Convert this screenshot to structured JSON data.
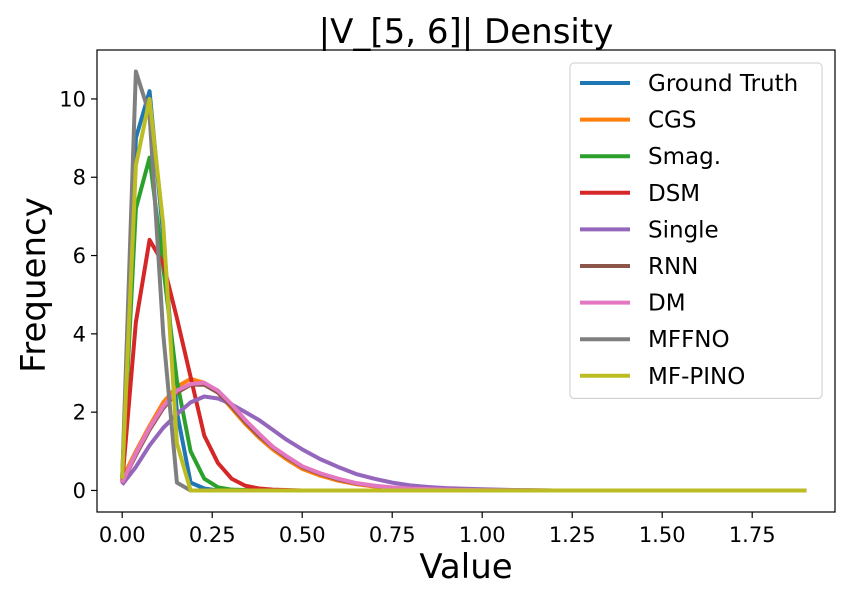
{
  "chart_data": {
    "type": "line",
    "title": "|V_[5, 6]| Density",
    "xlabel": "Value",
    "ylabel": "Frequency",
    "xlim": [
      -0.07,
      1.98
    ],
    "ylim": [
      -0.55,
      11.25
    ],
    "x_ticks": [
      0.0,
      0.25,
      0.5,
      0.75,
      1.0,
      1.25,
      1.5,
      1.75
    ],
    "x_tick_labels": [
      "0.00",
      "0.25",
      "0.50",
      "0.75",
      "1.00",
      "1.25",
      "1.50",
      "1.75"
    ],
    "y_ticks": [
      0,
      2,
      4,
      6,
      8,
      10
    ],
    "y_tick_labels": [
      "0",
      "2",
      "4",
      "6",
      "8",
      "10"
    ],
    "grid": false,
    "legend_position": "top-right",
    "series": [
      {
        "name": "Ground Truth",
        "color": "#1f77b4",
        "x": [
          0.0,
          0.038,
          0.076,
          0.114,
          0.152,
          0.19,
          0.228,
          0.266,
          0.4,
          0.6,
          1.0,
          1.5,
          1.9
        ],
        "y": [
          0.3,
          9.0,
          10.2,
          6.5,
          2.0,
          0.2,
          0.05,
          0.0,
          0.0,
          0.0,
          0.0,
          0.0,
          0.0
        ]
      },
      {
        "name": "CGS",
        "color": "#ff7f0e",
        "x": [
          0.0,
          0.038,
          0.076,
          0.114,
          0.152,
          0.19,
          0.228,
          0.266,
          0.304,
          0.342,
          0.38,
          0.418,
          0.456,
          0.5,
          0.55,
          0.6,
          0.65,
          0.7,
          0.75,
          0.8,
          0.9,
          1.0,
          1.2,
          1.5,
          1.9
        ],
        "y": [
          0.3,
          1.0,
          1.65,
          2.25,
          2.65,
          2.85,
          2.75,
          2.5,
          2.1,
          1.7,
          1.35,
          1.05,
          0.8,
          0.55,
          0.38,
          0.25,
          0.16,
          0.1,
          0.06,
          0.04,
          0.02,
          0.01,
          0.0,
          0.0,
          0.0
        ]
      },
      {
        "name": "Smag.",
        "color": "#2ca02c",
        "x": [
          0.0,
          0.038,
          0.076,
          0.114,
          0.152,
          0.19,
          0.228,
          0.266,
          0.304,
          0.4,
          0.6,
          1.0,
          1.5,
          1.9
        ],
        "y": [
          0.3,
          7.2,
          8.5,
          5.7,
          2.8,
          1.0,
          0.3,
          0.08,
          0.02,
          0.0,
          0.0,
          0.0,
          0.0,
          0.0
        ]
      },
      {
        "name": "DSM",
        "color": "#d62728",
        "x": [
          0.0,
          0.038,
          0.076,
          0.114,
          0.152,
          0.19,
          0.228,
          0.266,
          0.304,
          0.342,
          0.38,
          0.418,
          0.5,
          0.6,
          1.0,
          1.5,
          1.9
        ],
        "y": [
          0.2,
          4.3,
          6.4,
          5.8,
          4.4,
          2.9,
          1.4,
          0.7,
          0.3,
          0.12,
          0.05,
          0.02,
          0.0,
          0.0,
          0.0,
          0.0,
          0.0
        ]
      },
      {
        "name": "Single",
        "color": "#9467bd",
        "x": [
          0.0,
          0.038,
          0.076,
          0.114,
          0.152,
          0.19,
          0.228,
          0.266,
          0.304,
          0.342,
          0.38,
          0.418,
          0.456,
          0.5,
          0.55,
          0.6,
          0.65,
          0.7,
          0.75,
          0.8,
          0.85,
          0.9,
          1.0,
          1.1,
          1.2,
          1.5,
          1.9
        ],
        "y": [
          0.15,
          0.6,
          1.15,
          1.6,
          1.95,
          2.25,
          2.4,
          2.35,
          2.2,
          2.0,
          1.8,
          1.55,
          1.3,
          1.05,
          0.8,
          0.6,
          0.42,
          0.3,
          0.2,
          0.13,
          0.09,
          0.06,
          0.03,
          0.01,
          0.0,
          0.0,
          0.0
        ]
      },
      {
        "name": "RNN",
        "color": "#8c564b",
        "x": [
          0.0,
          0.038,
          0.076,
          0.114,
          0.152,
          0.19,
          0.228,
          0.266,
          0.304,
          0.342,
          0.38,
          0.418,
          0.456,
          0.5,
          0.55,
          0.6,
          0.65,
          0.7,
          0.75,
          0.8,
          0.9,
          1.0,
          1.2,
          1.5,
          1.9
        ],
        "y": [
          0.2,
          0.9,
          1.55,
          2.1,
          2.5,
          2.7,
          2.7,
          2.5,
          2.15,
          1.75,
          1.4,
          1.1,
          0.85,
          0.6,
          0.42,
          0.28,
          0.18,
          0.12,
          0.07,
          0.05,
          0.02,
          0.01,
          0.0,
          0.0,
          0.0
        ]
      },
      {
        "name": "DM",
        "color": "#e377c2",
        "x": [
          0.0,
          0.038,
          0.076,
          0.114,
          0.152,
          0.19,
          0.228,
          0.266,
          0.304,
          0.342,
          0.38,
          0.418,
          0.456,
          0.5,
          0.55,
          0.6,
          0.65,
          0.7,
          0.75,
          0.8,
          0.9,
          1.0,
          1.2,
          1.5,
          1.9
        ],
        "y": [
          0.2,
          0.95,
          1.6,
          2.15,
          2.55,
          2.72,
          2.75,
          2.55,
          2.2,
          1.8,
          1.45,
          1.12,
          0.88,
          0.62,
          0.44,
          0.3,
          0.19,
          0.12,
          0.08,
          0.05,
          0.02,
          0.01,
          0.0,
          0.0,
          0.0
        ]
      },
      {
        "name": "MFFNO",
        "color": "#7f7f7f",
        "x": [
          0.0,
          0.038,
          0.076,
          0.114,
          0.152,
          0.19,
          0.228,
          0.3,
          0.6,
          1.0,
          1.5,
          1.9
        ],
        "y": [
          0.3,
          10.7,
          9.6,
          4.0,
          0.2,
          0.0,
          0.0,
          0.0,
          0.0,
          0.0,
          0.0,
          0.0
        ]
      },
      {
        "name": "MF-PINO",
        "color": "#bcbd22",
        "x": [
          0.0,
          0.038,
          0.076,
          0.114,
          0.152,
          0.19,
          0.228,
          0.3,
          0.6,
          1.0,
          1.5,
          1.9
        ],
        "y": [
          0.3,
          8.3,
          10.0,
          6.8,
          1.2,
          0.0,
          0.0,
          0.0,
          0.0,
          0.0,
          0.0,
          0.0
        ]
      }
    ]
  }
}
